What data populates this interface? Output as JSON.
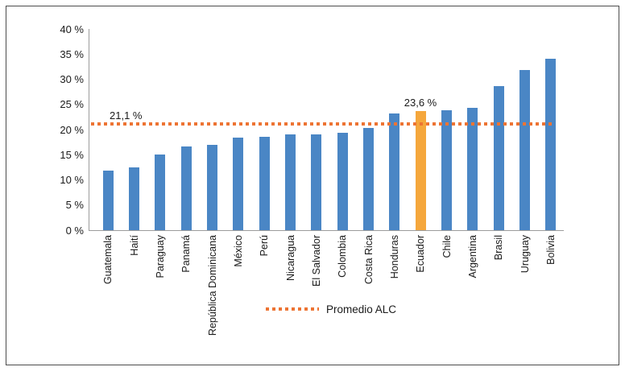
{
  "chart_data": {
    "type": "bar",
    "title": "",
    "xlabel": "",
    "ylabel": "",
    "categories": [
      "Guatemala",
      "Haití",
      "Paraguay",
      "Panamá",
      "República Dominicana",
      "México",
      "Perú",
      "Nicaragua",
      "El Salvador",
      "Colombia",
      "Costa Rica",
      "Honduras",
      "Ecuador",
      "Chile",
      "Argentina",
      "Brasil",
      "Uruguay",
      "Bolivia"
    ],
    "values": [
      11.8,
      12.4,
      15.0,
      16.6,
      17.0,
      18.4,
      18.5,
      19.0,
      19.0,
      19.3,
      20.4,
      23.2,
      23.6,
      23.8,
      24.3,
      28.6,
      31.8,
      34.1
    ],
    "highlight_index": 12,
    "highlight_annotation": "23,6 %",
    "reference_line": {
      "value": 21.1,
      "label": "21,1 %",
      "legend_label": "Promedio ALC"
    },
    "y_ticks": [
      "0 %",
      "5 %",
      "10 %",
      "15 %",
      "20 %",
      "25 %",
      "30 %",
      "35 %",
      "40 %"
    ],
    "ylim": [
      0,
      40
    ],
    "grid": false,
    "legend_position": "bottom-center",
    "colors": {
      "bar": "#4A86C5",
      "highlight": "#F5A73C",
      "reference": "#ED7433",
      "axis": "#9C9C9C",
      "text": "#1A1A1A",
      "frame": "#4D4D4D"
    }
  }
}
